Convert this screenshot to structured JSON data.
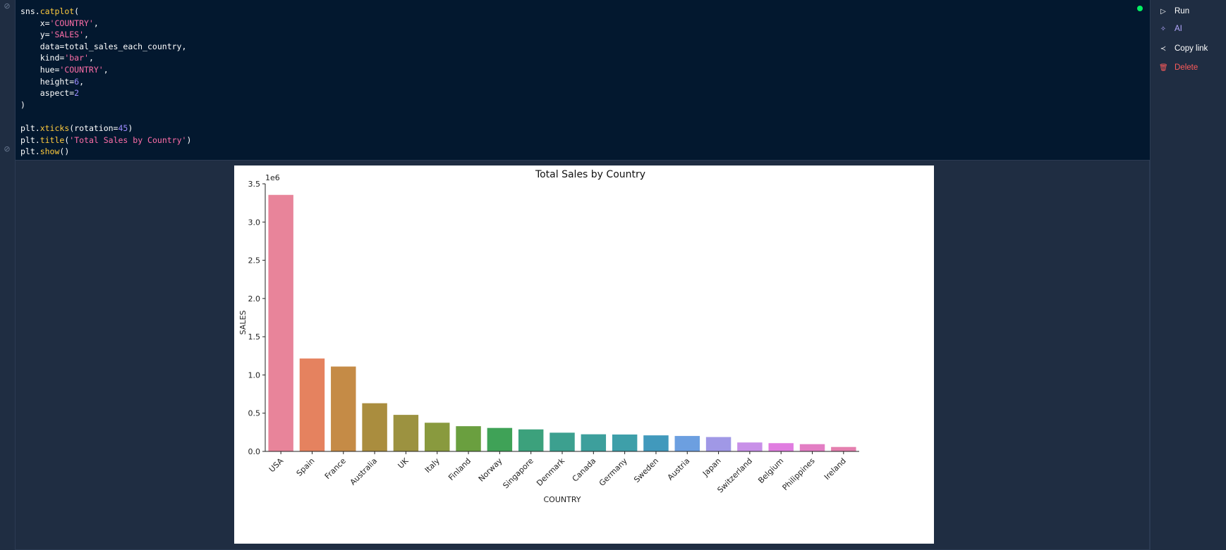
{
  "code_lines": [
    [
      {
        "t": "sns.",
        "c": ""
      },
      {
        "t": "catplot",
        "c": "fn"
      },
      {
        "t": "(",
        "c": ""
      }
    ],
    [
      {
        "t": "    x=",
        "c": ""
      },
      {
        "t": "'COUNTRY'",
        "c": "str"
      },
      {
        "t": ",",
        "c": ""
      }
    ],
    [
      {
        "t": "    y=",
        "c": ""
      },
      {
        "t": "'SALES'",
        "c": "str"
      },
      {
        "t": ",",
        "c": ""
      }
    ],
    [
      {
        "t": "    data=total_sales_each_country,",
        "c": ""
      }
    ],
    [
      {
        "t": "    kind=",
        "c": ""
      },
      {
        "t": "'bar'",
        "c": "str"
      },
      {
        "t": ",",
        "c": ""
      }
    ],
    [
      {
        "t": "    hue=",
        "c": ""
      },
      {
        "t": "'COUNTRY'",
        "c": "str"
      },
      {
        "t": ",",
        "c": ""
      }
    ],
    [
      {
        "t": "    height=",
        "c": ""
      },
      {
        "t": "6",
        "c": "num"
      },
      {
        "t": ",",
        "c": ""
      }
    ],
    [
      {
        "t": "    aspect=",
        "c": ""
      },
      {
        "t": "2",
        "c": "num"
      }
    ],
    [
      {
        "t": ")",
        "c": ""
      }
    ],
    [
      {
        "t": "",
        "c": ""
      }
    ],
    [
      {
        "t": "plt.",
        "c": ""
      },
      {
        "t": "xticks",
        "c": "fn"
      },
      {
        "t": "(rotation=",
        "c": ""
      },
      {
        "t": "45",
        "c": "num"
      },
      {
        "t": ")",
        "c": ""
      }
    ],
    [
      {
        "t": "plt.",
        "c": ""
      },
      {
        "t": "title",
        "c": "fn"
      },
      {
        "t": "(",
        "c": ""
      },
      {
        "t": "'Total Sales by Country'",
        "c": "str"
      },
      {
        "t": ")",
        "c": ""
      }
    ],
    [
      {
        "t": "plt.",
        "c": ""
      },
      {
        "t": "show",
        "c": "fn"
      },
      {
        "t": "()",
        "c": ""
      }
    ]
  ],
  "sidebar": {
    "run_label": "Run",
    "ai_label": "AI",
    "copy_link_label": "Copy link",
    "delete_label": "Delete"
  },
  "colors": {
    "status_dot": "#03ef62"
  },
  "chart_data": {
    "type": "bar",
    "title": "Total Sales by Country",
    "xlabel": "COUNTRY",
    "ylabel": "SALES",
    "y_offset_label": "1e6",
    "ylim": [
      0,
      3.5
    ],
    "yticks": [
      "0.0",
      "0.5",
      "1.0",
      "1.5",
      "2.0",
      "2.5",
      "3.0",
      "3.5"
    ],
    "categories": [
      "USA",
      "Spain",
      "France",
      "Australia",
      "UK",
      "Italy",
      "Finland",
      "Norway",
      "Singapore",
      "Denmark",
      "Canada",
      "Germany",
      "Sweden",
      "Austria",
      "Japan",
      "Switzerland",
      "Belgium",
      "Philippines",
      "Ireland"
    ],
    "values": [
      3.355,
      1.215,
      1.11,
      0.63,
      0.478,
      0.375,
      0.33,
      0.307,
      0.288,
      0.245,
      0.224,
      0.221,
      0.21,
      0.202,
      0.188,
      0.117,
      0.108,
      0.095,
      0.058
    ],
    "colors": [
      "#e8849a",
      "#e5825f",
      "#c58b46",
      "#aa8d3e",
      "#9c9240",
      "#899a3e",
      "#6a9f3f",
      "#3fa257",
      "#3ca17c",
      "#3ca08f",
      "#3d9f9c",
      "#3e9fa9",
      "#4199bc",
      "#6c9fe0",
      "#a098e6",
      "#c890e8",
      "#e07de0",
      "#e37ec4",
      "#e47fae"
    ],
    "grid": false,
    "legend": "none"
  }
}
